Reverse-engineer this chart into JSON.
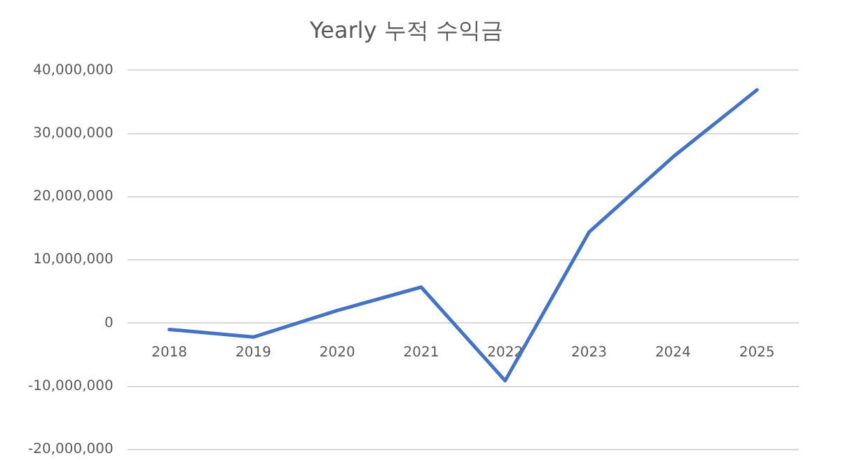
{
  "chart_data": {
    "type": "line",
    "title": "Yearly 누적 수익금",
    "categories": [
      "2018",
      "2019",
      "2020",
      "2021",
      "2022",
      "2023",
      "2024",
      "2025"
    ],
    "series": [
      {
        "color": "#4472c4",
        "values": [
          -1000000,
          -2200000,
          2000000,
          5700000,
          -9100000,
          14400000,
          26300000,
          36900000
        ]
      }
    ],
    "ylim": [
      -20000000,
      40000000
    ],
    "yticks": [
      {
        "value": -20000000,
        "label": "-20,000,000"
      },
      {
        "value": -10000000,
        "label": "-10,000,000"
      },
      0,
      {
        "value": 10000000,
        "label": "10,000,000"
      },
      {
        "value": 20000000,
        "label": "20,000,000"
      },
      {
        "value": 30000000,
        "label": "30,000,000"
      },
      {
        "value": 40000000,
        "label": "40,000,000"
      }
    ],
    "grid": "y",
    "legend": false,
    "marker": "none"
  }
}
